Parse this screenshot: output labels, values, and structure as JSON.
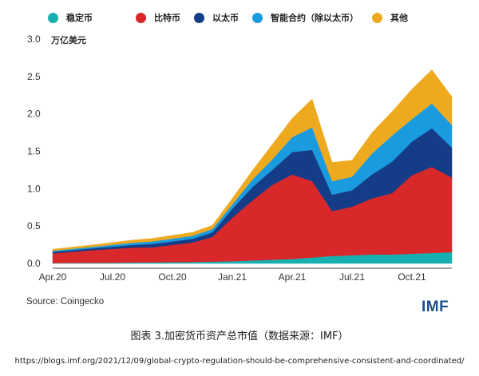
{
  "chart_data": {
    "type": "area",
    "stacked": true,
    "yunit": "万亿美元",
    "ylim": [
      0,
      3.0
    ],
    "yticks": [
      "0.0",
      "0.5",
      "1.0",
      "1.5",
      "2.0",
      "2.5",
      "3.0"
    ],
    "xticks": [
      "Apr.20",
      "Jul.20",
      "Oct.20",
      "Jan.21",
      "Apr.21",
      "Jul.21",
      "Oct.21"
    ],
    "x": [
      "2020-04",
      "2020-06",
      "2020-08",
      "2020-09",
      "2020-11",
      "2020-12",
      "2021-01",
      "2021-02",
      "2021-03",
      "2021-04",
      "2021-05",
      "2021-06",
      "2021-07",
      "2021-08",
      "2021-09",
      "2021-10",
      "2021-11",
      "2021-12"
    ],
    "legend_position": "top",
    "series": [
      {
        "name": "稳定币",
        "color": "#17b0b0",
        "values": [
          0.005,
          0.008,
          0.012,
          0.015,
          0.02,
          0.025,
          0.03,
          0.04,
          0.05,
          0.06,
          0.08,
          0.1,
          0.11,
          0.12,
          0.12,
          0.13,
          0.14,
          0.15
        ]
      },
      {
        "name": "比特币",
        "color": "#d8282a",
        "values": [
          0.13,
          0.17,
          0.2,
          0.2,
          0.26,
          0.33,
          0.58,
          0.8,
          1.0,
          1.13,
          1.02,
          0.6,
          0.65,
          0.75,
          0.82,
          1.05,
          1.15,
          1.0
        ]
      },
      {
        "name": "以太币",
        "color": "#153d87",
        "values": [
          0.02,
          0.025,
          0.035,
          0.045,
          0.05,
          0.06,
          0.12,
          0.18,
          0.2,
          0.3,
          0.42,
          0.22,
          0.22,
          0.32,
          0.42,
          0.45,
          0.52,
          0.4
        ]
      },
      {
        "name": "智能合约（除以太币）",
        "color": "#1a9be0",
        "values": [
          0.015,
          0.02,
          0.03,
          0.035,
          0.04,
          0.045,
          0.06,
          0.1,
          0.14,
          0.2,
          0.3,
          0.18,
          0.18,
          0.28,
          0.35,
          0.3,
          0.33,
          0.3
        ]
      },
      {
        "name": "其他",
        "color": "#eeaa1f",
        "values": [
          0.02,
          0.025,
          0.035,
          0.04,
          0.045,
          0.05,
          0.08,
          0.12,
          0.2,
          0.25,
          0.38,
          0.25,
          0.22,
          0.28,
          0.32,
          0.4,
          0.45,
          0.38
        ]
      }
    ]
  },
  "source": "Source: Coingecko",
  "logo": "IMF",
  "caption": "图表 3.加密货币资产总市值（数据来源：IMF）",
  "url": "https://blogs.imf.org/2021/12/09/global-crypto-regulation-should-be-comprehensive-consistent-and-coordinated/"
}
